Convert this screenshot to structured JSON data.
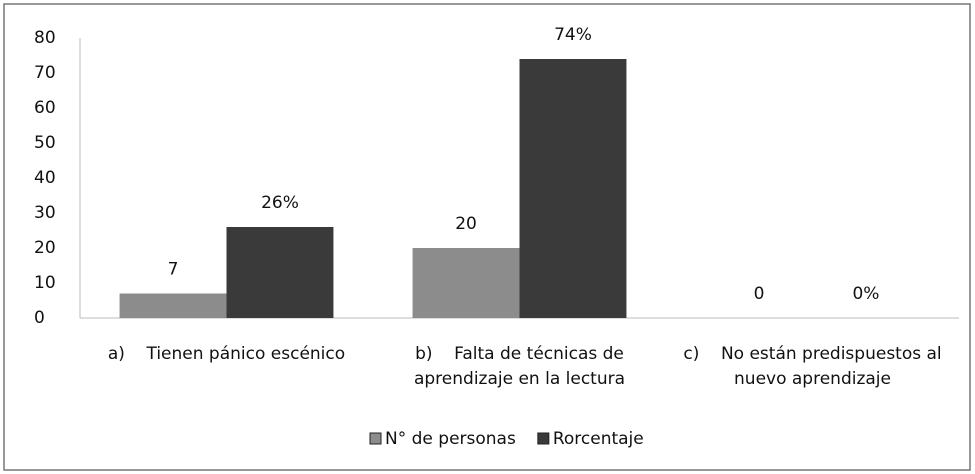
{
  "chart_data": {
    "type": "bar",
    "categories": [
      "a)    Tienen pánico escénico",
      "b)    Falta de técnicas de aprendizaje en la lectura",
      "c)    No están predispuestos al nuevo aprendizaje"
    ],
    "series": [
      {
        "name": "N° de personas",
        "color": "#8c8c8c",
        "values": [
          7,
          20,
          0
        ]
      },
      {
        "name": "Rorcentaje",
        "color": "#3a3a3a",
        "values": [
          26,
          74,
          0
        ],
        "value_labels": [
          "26%",
          "74%",
          "0%"
        ]
      }
    ],
    "ylim": [
      0,
      80
    ],
    "yticks": [
      0,
      10,
      20,
      30,
      40,
      50,
      60,
      70,
      80
    ],
    "grid": false,
    "legend": "bottom"
  }
}
